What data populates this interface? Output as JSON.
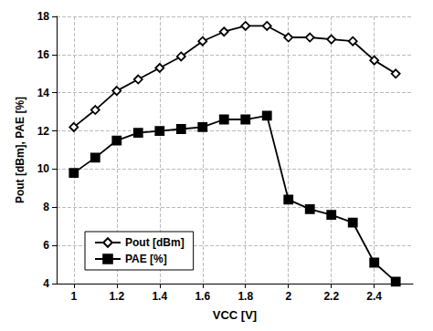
{
  "chart_data": {
    "type": "line",
    "xlabel": "VCC [V]",
    "ylabel": "Pout [dBm], PAE [%]",
    "x": [
      1.0,
      1.1,
      1.2,
      1.3,
      1.4,
      1.5,
      1.6,
      1.7,
      1.8,
      1.9,
      2.0,
      2.1,
      2.2,
      2.3,
      2.4,
      2.5
    ],
    "series": [
      {
        "name": "Pout [dBm]",
        "color": "black",
        "marker": "open_diamond",
        "values": [
          12.2,
          13.1,
          14.1,
          14.7,
          15.3,
          15.9,
          16.7,
          17.2,
          17.5,
          17.5,
          16.9,
          16.9,
          16.8,
          16.7,
          15.7,
          15.0
        ]
      },
      {
        "name": "PAE [%]",
        "color": "black",
        "marker": "square",
        "values": [
          9.8,
          10.6,
          11.5,
          11.9,
          12.0,
          12.1,
          12.2,
          12.6,
          12.6,
          12.8,
          8.4,
          7.9,
          7.6,
          7.2,
          5.1,
          4.1
        ]
      }
    ],
    "xlim": [
      0.92,
      2.58
    ],
    "ylim": [
      4,
      18
    ],
    "xticks": [
      1,
      1.2,
      1.4,
      1.6,
      1.8,
      2,
      2.2,
      2.4
    ],
    "yticks": [
      4,
      6,
      8,
      10,
      12,
      14,
      16,
      18
    ],
    "grid": true,
    "legend": "lower left"
  }
}
